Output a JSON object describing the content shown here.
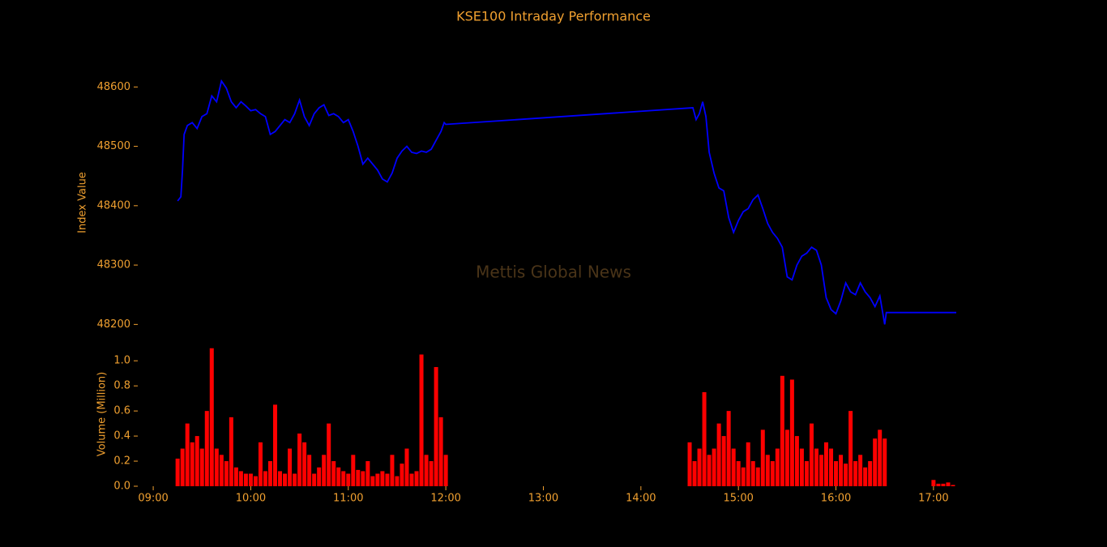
{
  "chart_data": [
    {
      "type": "line",
      "title": "KSE100 Intraday Performance",
      "ylabel": "Index Value",
      "annotation": "Mettis Global News",
      "color": "#0000ff",
      "xlim": [
        "08:48",
        "17:18"
      ],
      "ylim": [
        48180,
        48625
      ],
      "yticks": [
        48200,
        48300,
        48400,
        48500,
        48600
      ],
      "x": [
        "09:15",
        "09:17",
        "09:18",
        "09:19",
        "09:21",
        "09:24",
        "09:27",
        "09:30",
        "09:33",
        "09:36",
        "09:39",
        "09:42",
        "09:45",
        "09:48",
        "09:51",
        "09:54",
        "09:57",
        "10:00",
        "10:03",
        "10:06",
        "10:09",
        "10:12",
        "10:15",
        "10:18",
        "10:21",
        "10:24",
        "10:27",
        "10:30",
        "10:33",
        "10:36",
        "10:39",
        "10:42",
        "10:45",
        "10:48",
        "10:51",
        "10:54",
        "10:57",
        "11:00",
        "11:03",
        "11:06",
        "11:09",
        "11:12",
        "11:15",
        "11:18",
        "11:21",
        "11:24",
        "11:27",
        "11:30",
        "11:33",
        "11:36",
        "11:39",
        "11:42",
        "11:45",
        "11:48",
        "11:51",
        "11:54",
        "11:57",
        "11:59",
        "12:00",
        "14:32",
        "14:34",
        "14:36",
        "14:38",
        "14:40",
        "14:42",
        "14:45",
        "14:48",
        "14:51",
        "14:54",
        "14:57",
        "15:00",
        "15:03",
        "15:06",
        "15:09",
        "15:12",
        "15:15",
        "15:18",
        "15:21",
        "15:24",
        "15:27",
        "15:30",
        "15:33",
        "15:36",
        "15:39",
        "15:42",
        "15:45",
        "15:48",
        "15:51",
        "15:54",
        "15:57",
        "16:00",
        "16:03",
        "16:06",
        "16:09",
        "16:12",
        "16:15",
        "16:18",
        "16:21",
        "16:24",
        "16:27",
        "16:30",
        "16:31",
        "17:14"
      ],
      "values": [
        48408,
        48415,
        48460,
        48520,
        48535,
        48540,
        48530,
        48550,
        48555,
        48585,
        48575,
        48610,
        48598,
        48575,
        48565,
        48575,
        48568,
        48560,
        48562,
        48555,
        48550,
        48520,
        48525,
        48535,
        48545,
        48540,
        48555,
        48578,
        48550,
        48535,
        48555,
        48565,
        48570,
        48552,
        48555,
        48550,
        48540,
        48545,
        48525,
        48500,
        48470,
        48480,
        48470,
        48460,
        48445,
        48440,
        48455,
        48480,
        48492,
        48500,
        48490,
        48488,
        48492,
        48490,
        48495,
        48510,
        48525,
        48540,
        48537,
        48565,
        48545,
        48555,
        48575,
        48550,
        48490,
        48455,
        48430,
        48425,
        48380,
        48355,
        48375,
        48390,
        48395,
        48410,
        48418,
        48395,
        48370,
        48355,
        48345,
        48330,
        48280,
        48275,
        48300,
        48315,
        48320,
        48330,
        48325,
        48300,
        48245,
        48225,
        48218,
        48240,
        48270,
        48255,
        48250,
        48270,
        48255,
        48245,
        48230,
        48248,
        48200,
        48220,
        48220
      ]
    },
    {
      "type": "bar",
      "ylabel": "Volume (Million)",
      "color": "#ff0000",
      "xlim": [
        "08:48",
        "17:18"
      ],
      "xticks": [
        "09:00",
        "10:00",
        "11:00",
        "12:00",
        "13:00",
        "14:00",
        "15:00",
        "16:00",
        "17:00"
      ],
      "ylim": [
        0,
        1.15
      ],
      "yticks": [
        {
          "value": 0,
          "label": "0.0"
        },
        0.2,
        0.4,
        0.6,
        0.8,
        {
          "value": 1,
          "label": "1.0"
        }
      ],
      "x": [
        "09:15",
        "09:18",
        "09:21",
        "09:24",
        "09:27",
        "09:30",
        "09:33",
        "09:36",
        "09:39",
        "09:42",
        "09:45",
        "09:48",
        "09:51",
        "09:54",
        "09:57",
        "10:00",
        "10:03",
        "10:06",
        "10:09",
        "10:12",
        "10:15",
        "10:18",
        "10:21",
        "10:24",
        "10:27",
        "10:30",
        "10:33",
        "10:36",
        "10:39",
        "10:42",
        "10:45",
        "10:48",
        "10:51",
        "10:54",
        "10:57",
        "11:00",
        "11:03",
        "11:06",
        "11:09",
        "11:12",
        "11:15",
        "11:18",
        "11:21",
        "11:24",
        "11:27",
        "11:30",
        "11:33",
        "11:36",
        "11:39",
        "11:42",
        "11:45",
        "11:48",
        "11:51",
        "11:54",
        "11:57",
        "12:00",
        "14:30",
        "14:33",
        "14:36",
        "14:39",
        "14:42",
        "14:45",
        "14:48",
        "14:51",
        "14:54",
        "14:57",
        "15:00",
        "15:03",
        "15:06",
        "15:09",
        "15:12",
        "15:15",
        "15:18",
        "15:21",
        "15:24",
        "15:27",
        "15:30",
        "15:33",
        "15:36",
        "15:39",
        "15:42",
        "15:45",
        "15:48",
        "15:51",
        "15:54",
        "15:57",
        "16:00",
        "16:03",
        "16:06",
        "16:09",
        "16:12",
        "16:15",
        "16:18",
        "16:21",
        "16:24",
        "16:27",
        "16:30",
        "17:00",
        "17:03",
        "17:06",
        "17:09",
        "17:12"
      ],
      "values": [
        0.22,
        0.3,
        0.5,
        0.35,
        0.4,
        0.3,
        0.6,
        1.1,
        0.3,
        0.25,
        0.2,
        0.55,
        0.15,
        0.12,
        0.1,
        0.1,
        0.08,
        0.35,
        0.12,
        0.2,
        0.65,
        0.12,
        0.1,
        0.3,
        0.1,
        0.42,
        0.35,
        0.25,
        0.1,
        0.15,
        0.25,
        0.5,
        0.2,
        0.15,
        0.12,
        0.1,
        0.25,
        0.13,
        0.12,
        0.2,
        0.08,
        0.1,
        0.12,
        0.1,
        0.25,
        0.08,
        0.18,
        0.3,
        0.1,
        0.12,
        1.05,
        0.25,
        0.2,
        0.95,
        0.55,
        0.25,
        0.35,
        0.2,
        0.3,
        0.75,
        0.25,
        0.3,
        0.5,
        0.4,
        0.6,
        0.3,
        0.2,
        0.15,
        0.35,
        0.2,
        0.15,
        0.45,
        0.25,
        0.2,
        0.3,
        0.88,
        0.45,
        0.85,
        0.4,
        0.3,
        0.2,
        0.5,
        0.3,
        0.25,
        0.35,
        0.3,
        0.2,
        0.25,
        0.18,
        0.6,
        0.2,
        0.25,
        0.15,
        0.2,
        0.38,
        0.45,
        0.38,
        0.05,
        0.02,
        0.02,
        0.03,
        0.01
      ]
    }
  ]
}
